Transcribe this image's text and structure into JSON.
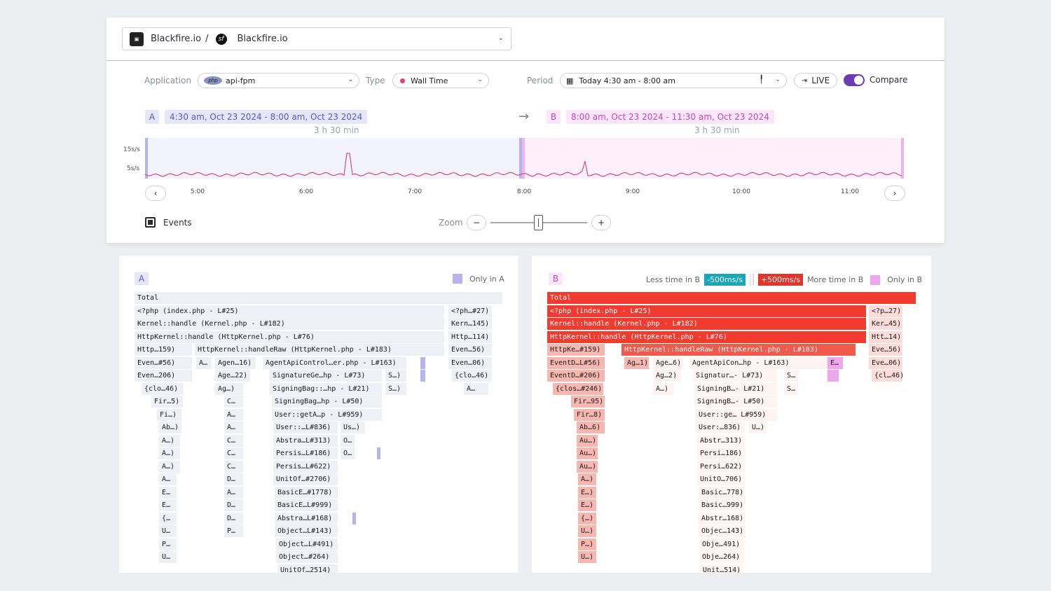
{
  "header": {
    "org": "Blackfire.io",
    "separator": "/",
    "project": "Blackfire.io",
    "logo_icon": "blackfire-logo-icon",
    "project_icon": "symfony-logo-icon"
  },
  "filters": {
    "application_label": "Application",
    "application_value": "api-fpm",
    "type_label": "Type",
    "type_value": "Wall Time",
    "period_label": "Period",
    "period_value": "Today 4:30 am - 8:00 am",
    "live_label": "LIVE",
    "compare_label": "Compare",
    "compare_on": true
  },
  "ranges": {
    "a_badge": "A",
    "a_text": "4:30 am, Oct 23 2024 - 8:00 am, Oct 23 2024",
    "a_duration": "3 h 30 min",
    "b_badge": "B",
    "b_text": "8:00 am, Oct 23 2024 - 11:30 am, Oct 23 2024",
    "b_duration": "3 h 30 min"
  },
  "timeline": {
    "y_labels": [
      "15s/s",
      "5s/s"
    ],
    "x_ticks": [
      "5:00",
      "6:00",
      "7:00",
      "8:00",
      "9:00",
      "10:00",
      "11:00"
    ],
    "a_color": "#b8b2f1",
    "b_color": "#eeb4ec",
    "line_color": "#d14b85"
  },
  "controls": {
    "events_label": "Events",
    "zoom_label": "Zoom",
    "zoom_out": "−",
    "zoom_in": "+",
    "prev": "‹",
    "next": "›"
  },
  "panel_a": {
    "badge": "A",
    "legend_only": "Only in A",
    "only_color": "#b8b2f1",
    "rows": [
      [
        {
          "t": "Total",
          "x": 22,
          "w": 525
        }
      ],
      [
        {
          "t": "<?php (index.php - L#25)",
          "x": 22,
          "w": 442
        },
        {
          "t": "<?ph…#27)",
          "x": 470,
          "w": 62
        }
      ],
      [
        {
          "t": "Kernel::handle (Kernel.php - L#182)",
          "x": 22,
          "w": 442
        },
        {
          "t": "Kern…145)",
          "x": 470,
          "w": 62
        }
      ],
      [
        {
          "t": "HttpKernel::handle (HttpKernel.php - L#76)",
          "x": 22,
          "w": 442
        },
        {
          "t": "Http…114)",
          "x": 470,
          "w": 62
        }
      ],
      [
        {
          "t": "Http…159)",
          "x": 22,
          "w": 82
        },
        {
          "t": "HttpKernel::handleRaw (HttpKernel.php - L#183)",
          "x": 108,
          "w": 356
        },
        {
          "t": "Even…56)",
          "x": 470,
          "w": 62
        }
      ],
      [
        {
          "t": "Even…#56)",
          "x": 22,
          "w": 82
        },
        {
          "t": "A…",
          "x": 110,
          "w": 22
        },
        {
          "t": "Agen…16)",
          "x": 137,
          "w": 58
        },
        {
          "t": "AgentApiControl…er.php - L#163)",
          "x": 205,
          "w": 205
        },
        {
          "t": "",
          "x": 430,
          "w": 7,
          "c": "only"
        },
        {
          "t": "Even…06)",
          "x": 470,
          "w": 62
        }
      ],
      [
        {
          "t": "Even…206)",
          "x": 22,
          "w": 82
        },
        {
          "t": "Age…22)",
          "x": 137,
          "w": 50
        },
        {
          "t": "SignatureGe…hp - L#73)",
          "x": 215,
          "w": 160
        },
        {
          "t": "S…)",
          "x": 380,
          "w": 30
        },
        {
          "t": "",
          "x": 430,
          "w": 7,
          "c": "only"
        },
        {
          "t": "{clo…46)",
          "x": 475,
          "w": 57
        }
      ],
      [
        {
          "t": "{clo…46)",
          "x": 32,
          "w": 60
        },
        {
          "t": "Ag…)",
          "x": 137,
          "w": 40
        },
        {
          "t": "SigningBag::…hp - L#21)",
          "x": 215,
          "w": 160
        },
        {
          "t": "S…)",
          "x": 380,
          "w": 30
        },
        {
          "t": "A…",
          "x": 492,
          "w": 35
        }
      ],
      [
        {
          "t": "Fir…5)",
          "x": 46,
          "w": 45
        },
        {
          "t": "C…",
          "x": 150,
          "w": 27
        },
        {
          "t": "SigningBag…hp - L#50)",
          "x": 218,
          "w": 157
        }
      ],
      [
        {
          "t": "Fi…)",
          "x": 54,
          "w": 35
        },
        {
          "t": "A…",
          "x": 150,
          "w": 27
        },
        {
          "t": "User::getA…p - L#959)",
          "x": 218,
          "w": 157
        }
      ],
      [
        {
          "t": "Ab…)",
          "x": 57,
          "w": 32
        },
        {
          "t": "A…",
          "x": 150,
          "w": 27
        },
        {
          "t": "User::…L#836)",
          "x": 220,
          "w": 92
        },
        {
          "t": "Us…)",
          "x": 316,
          "w": 35
        }
      ],
      [
        {
          "t": "A…)",
          "x": 57,
          "w": 30
        },
        {
          "t": "C…",
          "x": 150,
          "w": 27
        },
        {
          "t": "Abstra…L#313)",
          "x": 220,
          "w": 92
        },
        {
          "t": "O…",
          "x": 316,
          "w": 20
        }
      ],
      [
        {
          "t": "A…)",
          "x": 57,
          "w": 30
        },
        {
          "t": "C…",
          "x": 150,
          "w": 27
        },
        {
          "t": "Persis…L#186)",
          "x": 220,
          "w": 92
        },
        {
          "t": "O…",
          "x": 316,
          "w": 20
        },
        {
          "t": "",
          "x": 368,
          "w": 5,
          "c": "only"
        }
      ],
      [
        {
          "t": "A…)",
          "x": 57,
          "w": 30
        },
        {
          "t": "C…",
          "x": 150,
          "w": 27
        },
        {
          "t": "Persis…L#622)",
          "x": 220,
          "w": 92
        }
      ],
      [
        {
          "t": "A…",
          "x": 57,
          "w": 25
        },
        {
          "t": "D…",
          "x": 150,
          "w": 27
        },
        {
          "t": "UnitOf…#2706)",
          "x": 220,
          "w": 92
        }
      ],
      [
        {
          "t": "E…",
          "x": 57,
          "w": 25
        },
        {
          "t": "A…",
          "x": 150,
          "w": 27
        },
        {
          "t": "BasicE…#1778)",
          "x": 222,
          "w": 90
        }
      ],
      [
        {
          "t": "E…",
          "x": 57,
          "w": 25
        },
        {
          "t": "D…",
          "x": 150,
          "w": 27
        },
        {
          "t": "BasicE…L#999)",
          "x": 222,
          "w": 90
        }
      ],
      [
        {
          "t": "{…",
          "x": 57,
          "w": 25
        },
        {
          "t": "D…",
          "x": 150,
          "w": 27
        },
        {
          "t": "Abstra…L#168)",
          "x": 222,
          "w": 90
        },
        {
          "t": "",
          "x": 333,
          "w": 5,
          "c": "only"
        }
      ],
      [
        {
          "t": "U…",
          "x": 57,
          "w": 25
        },
        {
          "t": "P…",
          "x": 150,
          "w": 27
        },
        {
          "t": "Object…L#143)",
          "x": 222,
          "w": 90
        }
      ],
      [
        {
          "t": "P…",
          "x": 57,
          "w": 25
        },
        {
          "t": "Object…L#491)",
          "x": 224,
          "w": 88
        }
      ],
      [
        {
          "t": "U…",
          "x": 57,
          "w": 25
        },
        {
          "t": "Object…#264)",
          "x": 224,
          "w": 88
        }
      ],
      [
        {
          "t": "UnitOf…2514)",
          "x": 226,
          "w": 86
        }
      ]
    ]
  },
  "panel_b": {
    "badge": "B",
    "legend_less": "Less time in B",
    "legend_minus": "-500ms/s",
    "legend_plus": "+500ms/s",
    "legend_more": "More time in B",
    "legend_only": "Only in B",
    "minus_color": "#17a7b8",
    "plus_color": "#e4332a",
    "only_color": "#f0a6ee",
    "rows": [
      [
        {
          "t": "Total",
          "x": 22,
          "w": 526,
          "h": 5
        }
      ],
      [
        {
          "t": "<?php (index.php - L#25)",
          "x": 22,
          "w": 455,
          "h": 5
        },
        {
          "t": "<?p…27)",
          "x": 481,
          "w": 48,
          "h": 1
        }
      ],
      [
        {
          "t": "Kernel::handle (Kernel.php - L#182)",
          "x": 22,
          "w": 455,
          "h": 5
        },
        {
          "t": "Ker…45)",
          "x": 481,
          "w": 48,
          "h": 1
        }
      ],
      [
        {
          "t": "HttpKernel::handle (HttpKernel.php - L#76)",
          "x": 22,
          "w": 455,
          "h": 5
        },
        {
          "t": "Htt…14)",
          "x": 481,
          "w": 48,
          "h": 1
        }
      ],
      [
        {
          "t": "HttpKe…#159)",
          "x": 22,
          "w": 82,
          "h": 2
        },
        {
          "t": "HttpKernel::handleRaw (HttpKernel.php - L#183)",
          "x": 128,
          "w": 334,
          "h": 4
        },
        {
          "t": "Eve…56)",
          "x": 481,
          "w": 48,
          "h": 1
        }
      ],
      [
        {
          "t": "EventD…L#56)",
          "x": 22,
          "w": 82,
          "h": 2
        },
        {
          "t": "Ag…1)",
          "x": 132,
          "w": 35,
          "h": 2
        },
        {
          "t": "Age…6)",
          "x": 173,
          "w": 42,
          "h": 0
        },
        {
          "t": "AgentApiCon…hp - L#163)",
          "x": 225,
          "w": 200,
          "h": 0
        },
        {
          "t": "E…",
          "x": 422,
          "w": 22,
          "c": "only"
        },
        {
          "t": "Eve…06)",
          "x": 481,
          "w": 48,
          "h": 1
        }
      ],
      [
        {
          "t": "EventD…#206)",
          "x": 22,
          "w": 82,
          "h": 2
        },
        {
          "t": "Ag…2)",
          "x": 173,
          "w": 40,
          "h": 0
        },
        {
          "t": "Signatur…- L#73)",
          "x": 230,
          "w": 120,
          "h": 0
        },
        {
          "t": "S…",
          "x": 360,
          "w": 20,
          "h": 0
        },
        {
          "t": "",
          "x": 422,
          "w": 16,
          "c": "only"
        },
        {
          "t": "{cl…46)",
          "x": 485,
          "w": 44,
          "h": 1
        }
      ],
      [
        {
          "t": "{clos…#246)",
          "x": 30,
          "w": 72,
          "h": 2
        },
        {
          "t": "A…)",
          "x": 173,
          "w": 30,
          "h": 0
        },
        {
          "t": "SigningB…- L#21)",
          "x": 232,
          "w": 118,
          "h": 0
        },
        {
          "t": "S…",
          "x": 360,
          "w": 20,
          "h": 0
        }
      ],
      [
        {
          "t": "Fir…95)",
          "x": 56,
          "w": 48,
          "h": 2
        },
        {
          "t": "SigningB…- L#50)",
          "x": 232,
          "w": 118,
          "h": 0
        }
      ],
      [
        {
          "t": "Fir…8)",
          "x": 60,
          "w": 44,
          "h": 2
        },
        {
          "t": "User::ge… L#959)",
          "x": 234,
          "w": 116,
          "h": 0
        }
      ],
      [
        {
          "t": "Ab…6)",
          "x": 64,
          "w": 40,
          "h": 2
        },
        {
          "t": "User:…836)",
          "x": 234,
          "w": 70,
          "h": 0
        },
        {
          "t": "U…)",
          "x": 310,
          "w": 25,
          "h": 0
        }
      ],
      [
        {
          "t": "Au…)",
          "x": 64,
          "w": 30,
          "h": 2
        },
        {
          "t": "Abstr…313)",
          "x": 236,
          "w": 68,
          "h": 0
        }
      ],
      [
        {
          "t": "Au…)",
          "x": 64,
          "w": 30,
          "h": 2
        },
        {
          "t": "Persi…186)",
          "x": 236,
          "w": 68,
          "h": 0
        }
      ],
      [
        {
          "t": "Au…)",
          "x": 64,
          "w": 30,
          "h": 2
        },
        {
          "t": "Persi…622)",
          "x": 236,
          "w": 68,
          "h": 0
        }
      ],
      [
        {
          "t": "A…)",
          "x": 66,
          "w": 26,
          "h": 2
        },
        {
          "t": "UnitO…706)",
          "x": 236,
          "w": 68,
          "h": 0
        }
      ],
      [
        {
          "t": "E…)",
          "x": 66,
          "w": 26,
          "h": 2
        },
        {
          "t": "Basic…778)",
          "x": 238,
          "w": 66,
          "h": 0
        }
      ],
      [
        {
          "t": "E…)",
          "x": 66,
          "w": 26,
          "h": 2
        },
        {
          "t": "Basic…999)",
          "x": 238,
          "w": 66,
          "h": 0
        }
      ],
      [
        {
          "t": "{…)",
          "x": 66,
          "w": 26,
          "h": 2
        },
        {
          "t": "Abstr…168)",
          "x": 238,
          "w": 66,
          "h": 0
        }
      ],
      [
        {
          "t": "U…)",
          "x": 66,
          "w": 26,
          "h": 2
        },
        {
          "t": "Objec…143)",
          "x": 238,
          "w": 66,
          "h": 0
        }
      ],
      [
        {
          "t": "P…)",
          "x": 66,
          "w": 26,
          "h": 2
        },
        {
          "t": "Obje…491)",
          "x": 239,
          "w": 64,
          "h": 0
        }
      ],
      [
        {
          "t": "U…)",
          "x": 66,
          "w": 26,
          "h": 2
        },
        {
          "t": "Obje…264)",
          "x": 239,
          "w": 64,
          "h": 0
        }
      ],
      [
        {
          "t": "Unit…514)",
          "x": 240,
          "w": 62,
          "h": 0
        }
      ]
    ]
  }
}
